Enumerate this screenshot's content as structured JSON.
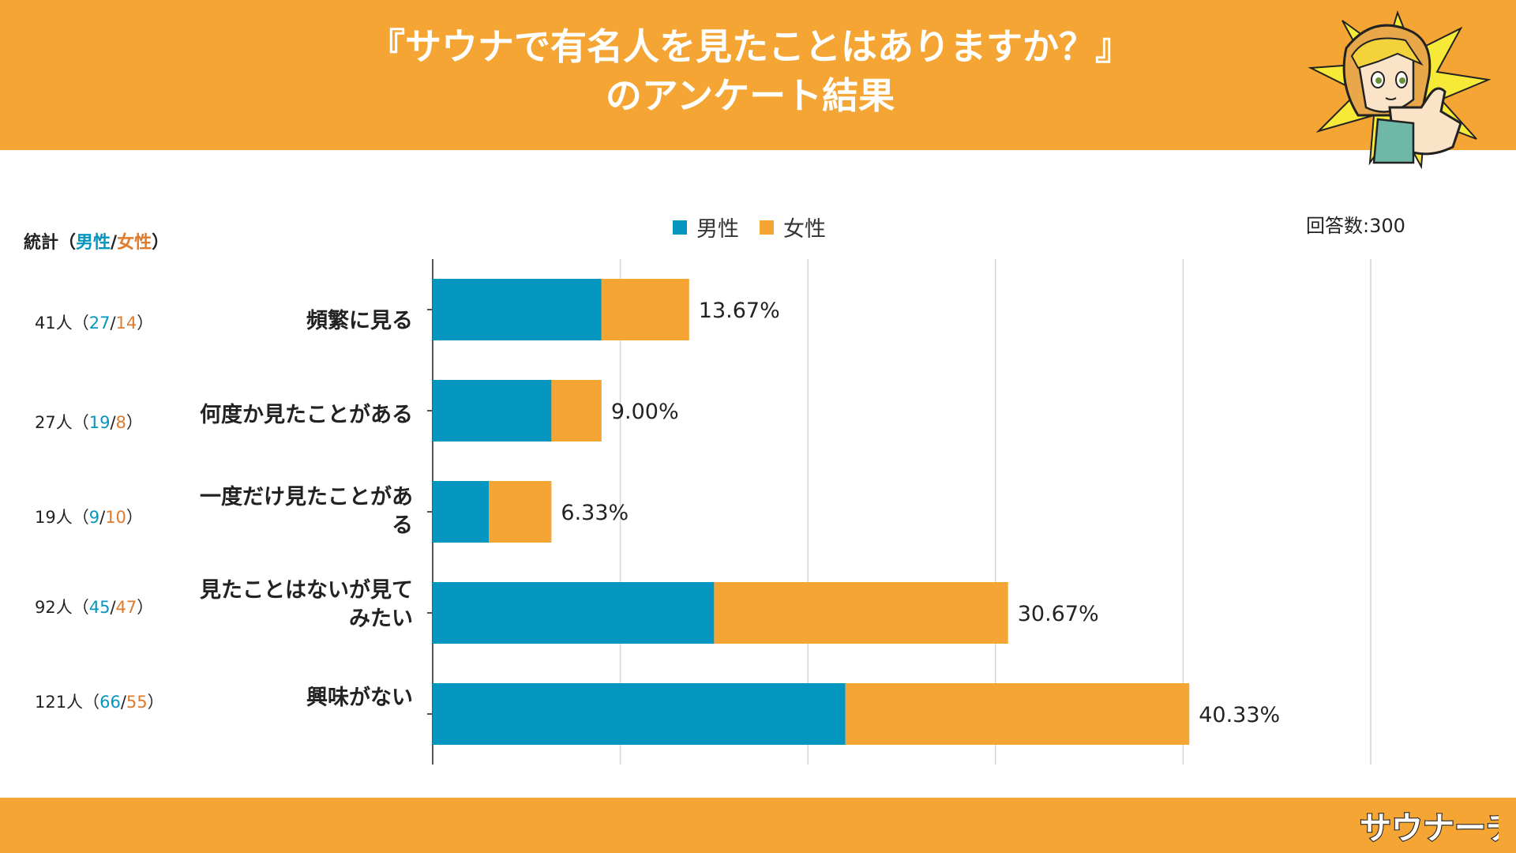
{
  "header": {
    "title_line1": "『サウナで有名人を見たことはありますか？』",
    "title_line2": "のアンケート結果"
  },
  "legend": {
    "male": "男性",
    "female": "女性"
  },
  "respondents": "回答数:300",
  "stats_header": {
    "prefix": "統計（",
    "male": "男性",
    "slash": "/",
    "female": "女性",
    "suffix": "）"
  },
  "stats": [
    {
      "total": "41人",
      "male": "27",
      "female": "14"
    },
    {
      "total": "27人",
      "male": "19",
      "female": "8"
    },
    {
      "total": "19人",
      "male": "9",
      "female": "10"
    },
    {
      "total": "92人",
      "male": "45",
      "female": "47"
    },
    {
      "total": "121人",
      "male": "66",
      "female": "55"
    }
  ],
  "colors": {
    "header": "#F4A534",
    "male": "#0596BF",
    "female": "#F4A534",
    "male_text": "#0596BF",
    "female_text": "#E07B2C"
  },
  "logo": {
    "text": "サウナーチ"
  },
  "chart_data": {
    "type": "bar",
    "orientation": "horizontal",
    "stacked": true,
    "categories": [
      "頻繁に見る",
      "何度か見たことがある",
      "一度だけ見たことがある",
      "見たことはないが見てみたい",
      "興味がない"
    ],
    "category_lines": [
      [
        "頻繁に見る"
      ],
      [
        "何度か見たことがある"
      ],
      [
        "一度だけ見たことがあ",
        "る"
      ],
      [
        "見たことはないが見て",
        "みたい"
      ],
      [
        "興味がない"
      ]
    ],
    "series": [
      {
        "name": "男性",
        "values": [
          9.0,
          6.33,
          3.0,
          15.0,
          22.0
        ]
      },
      {
        "name": "女性",
        "values": [
          4.67,
          2.67,
          3.33,
          15.67,
          18.33
        ]
      }
    ],
    "value_labels": [
      "13.67%",
      "9.00%",
      "6.33%",
      "30.67%",
      "40.33%"
    ],
    "xlim": [
      0,
      50
    ],
    "grid": true,
    "legend_position": "top-center"
  }
}
